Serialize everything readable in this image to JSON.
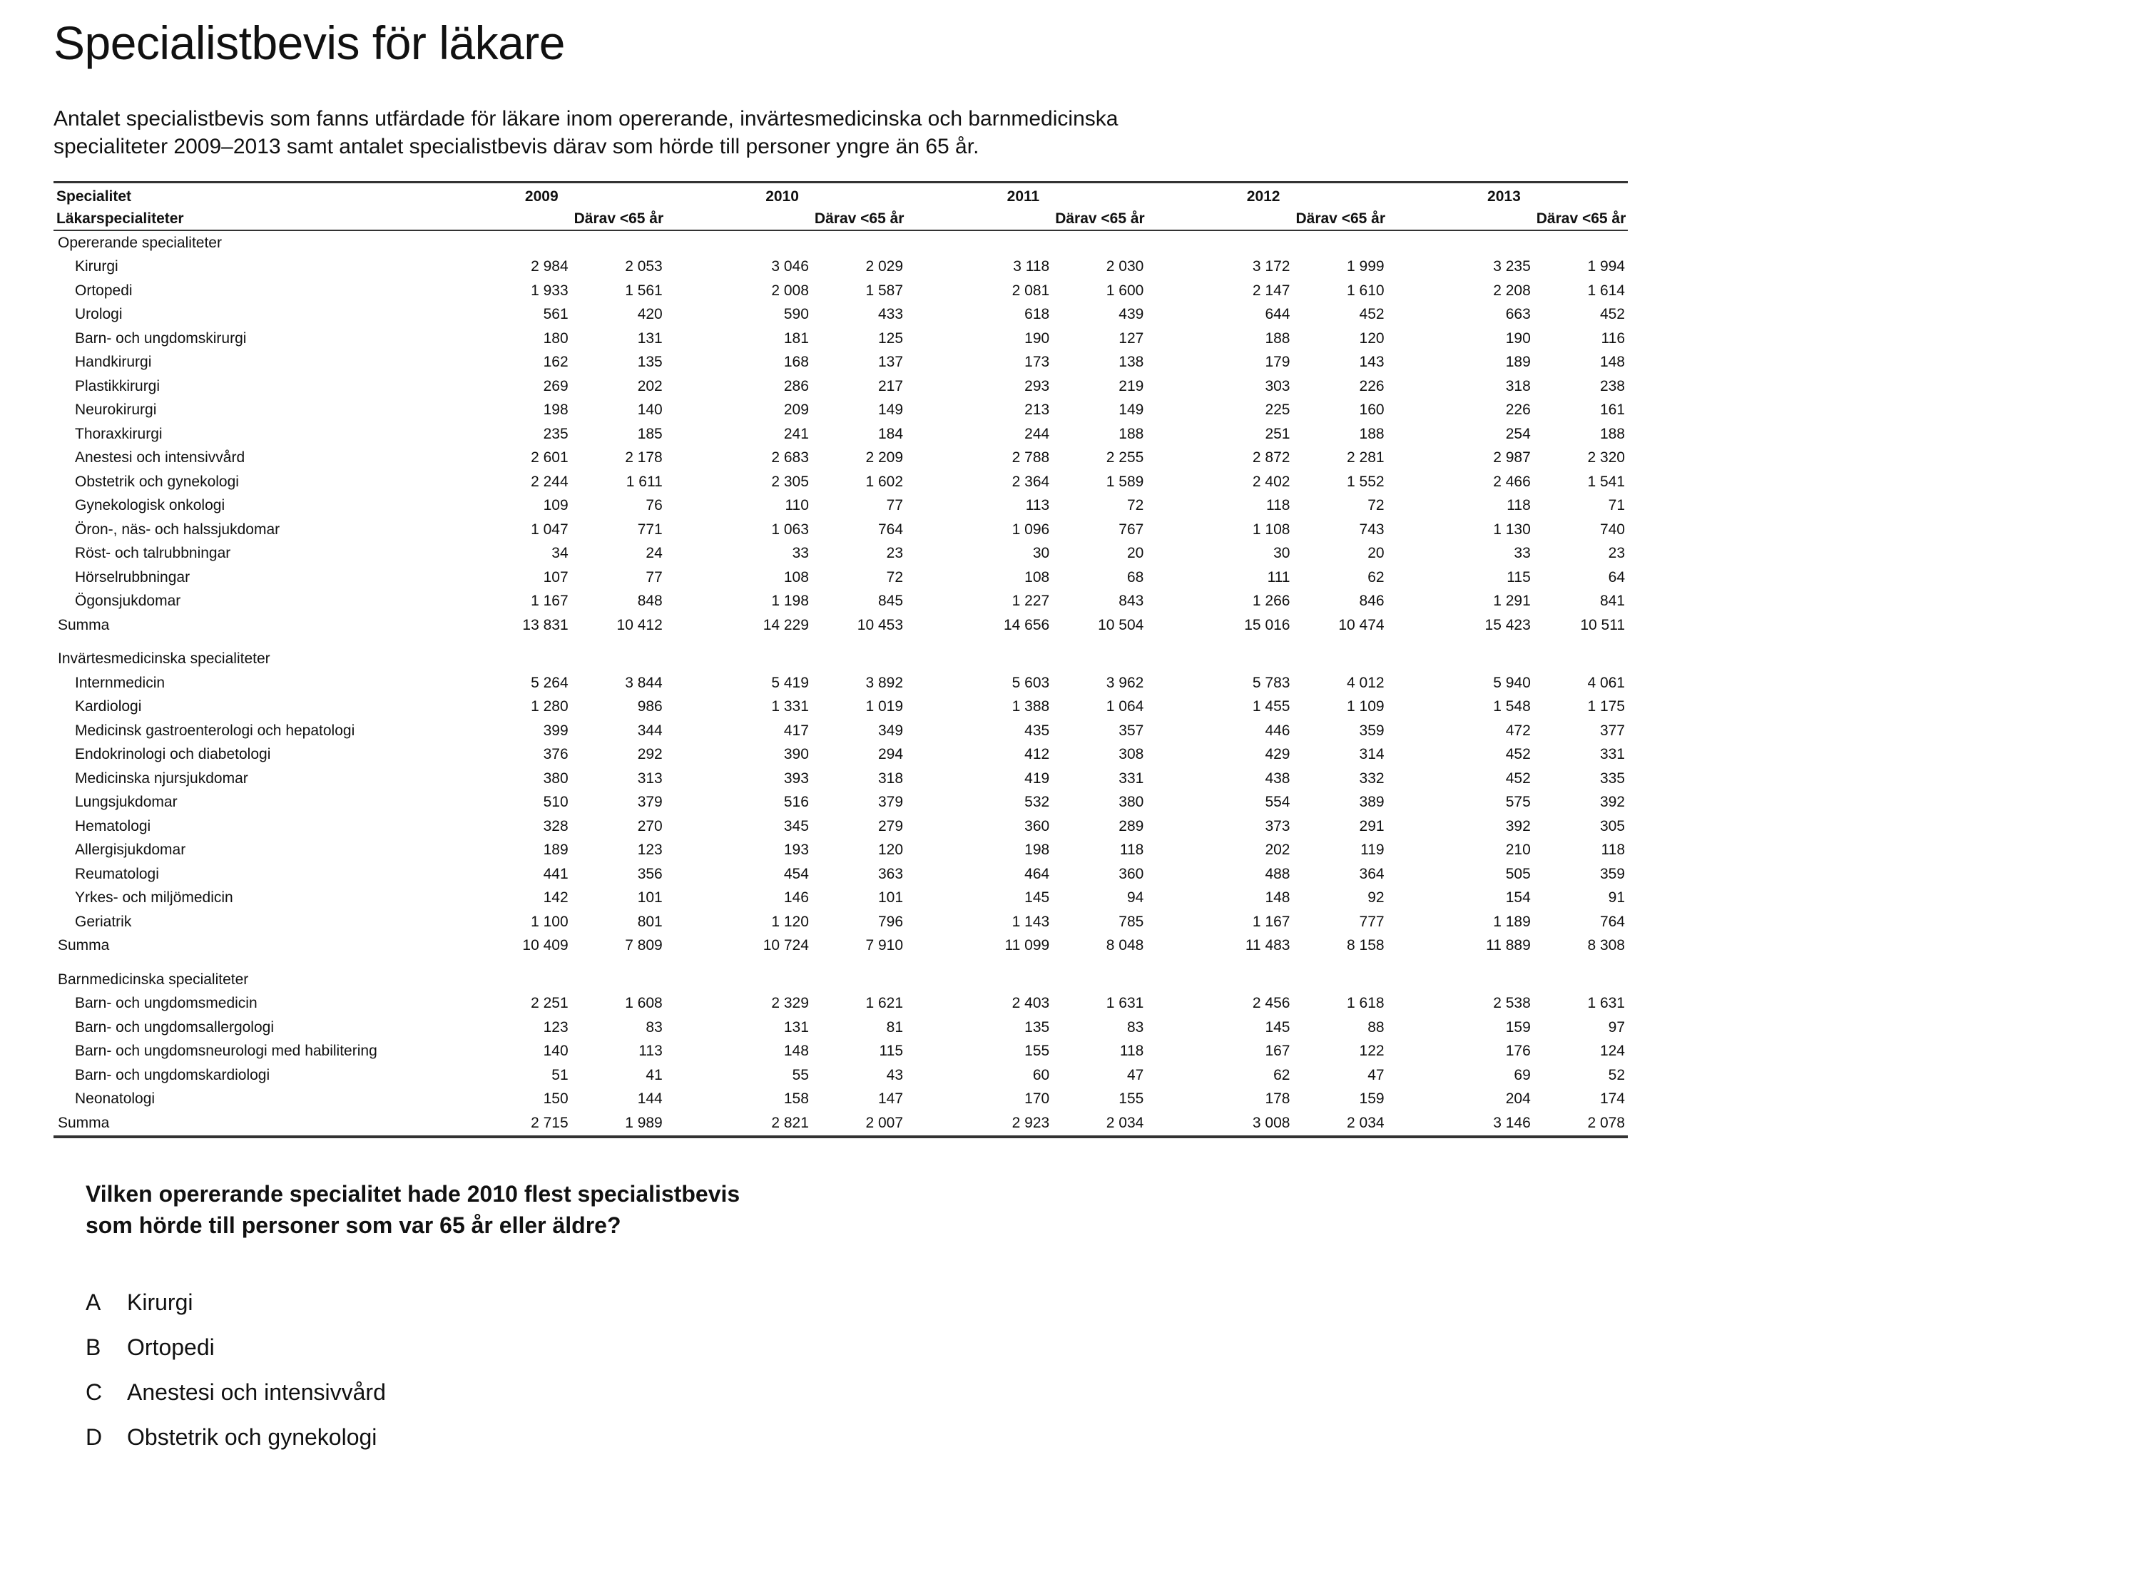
{
  "title": "Specialistbevis för läkare",
  "intro": "Antalet specialistbevis som fanns utfärdade för läkare inom opererande, invärtesmedicinska och barnmedicinska specialiteter 2009–2013 samt antalet specialistbevis därav som hörde till personer yngre än 65 år.",
  "table": {
    "header_col": "Specialitet",
    "header_sub": "Läkarspecialiteter",
    "years": [
      "2009",
      "2010",
      "2011",
      "2012",
      "2013"
    ],
    "sub_label": "Därav <65 år",
    "groups": [
      {
        "name": "Opererande specialiteter",
        "rows": [
          {
            "label": "Kirurgi",
            "values": [
              "2 984",
              "2 053",
              "3 046",
              "2 029",
              "3 118",
              "2 030",
              "3 172",
              "1 999",
              "3 235",
              "1 994"
            ]
          },
          {
            "label": "Ortopedi",
            "values": [
              "1 933",
              "1 561",
              "2 008",
              "1 587",
              "2 081",
              "1 600",
              "2 147",
              "1 610",
              "2 208",
              "1 614"
            ]
          },
          {
            "label": "Urologi",
            "values": [
              "561",
              "420",
              "590",
              "433",
              "618",
              "439",
              "644",
              "452",
              "663",
              "452"
            ]
          },
          {
            "label": "Barn- och ungdomskirurgi",
            "values": [
              "180",
              "131",
              "181",
              "125",
              "190",
              "127",
              "188",
              "120",
              "190",
              "116"
            ]
          },
          {
            "label": "Handkirurgi",
            "values": [
              "162",
              "135",
              "168",
              "137",
              "173",
              "138",
              "179",
              "143",
              "189",
              "148"
            ]
          },
          {
            "label": "Plastikkirurgi",
            "values": [
              "269",
              "202",
              "286",
              "217",
              "293",
              "219",
              "303",
              "226",
              "318",
              "238"
            ]
          },
          {
            "label": "Neurokirurgi",
            "values": [
              "198",
              "140",
              "209",
              "149",
              "213",
              "149",
              "225",
              "160",
              "226",
              "161"
            ]
          },
          {
            "label": "Thoraxkirurgi",
            "values": [
              "235",
              "185",
              "241",
              "184",
              "244",
              "188",
              "251",
              "188",
              "254",
              "188"
            ]
          },
          {
            "label": "Anestesi och intensivvård",
            "values": [
              "2 601",
              "2 178",
              "2 683",
              "2 209",
              "2 788",
              "2 255",
              "2 872",
              "2 281",
              "2 987",
              "2 320"
            ]
          },
          {
            "label": "Obstetrik och gynekologi",
            "values": [
              "2 244",
              "1 611",
              "2 305",
              "1 602",
              "2 364",
              "1 589",
              "2 402",
              "1 552",
              "2 466",
              "1 541"
            ]
          },
          {
            "label": "Gynekologisk onkologi",
            "values": [
              "109",
              "76",
              "110",
              "77",
              "113",
              "72",
              "118",
              "72",
              "118",
              "71"
            ]
          },
          {
            "label": "Öron-, näs- och halssjukdomar",
            "values": [
              "1 047",
              "771",
              "1 063",
              "764",
              "1 096",
              "767",
              "1 108",
              "743",
              "1 130",
              "740"
            ]
          },
          {
            "label": "Röst- och talrubbningar",
            "values": [
              "34",
              "24",
              "33",
              "23",
              "30",
              "20",
              "30",
              "20",
              "33",
              "23"
            ]
          },
          {
            "label": "Hörselrubbningar",
            "values": [
              "107",
              "77",
              "108",
              "72",
              "108",
              "68",
              "111",
              "62",
              "115",
              "64"
            ]
          },
          {
            "label": "Ögonsjukdomar",
            "values": [
              "1 167",
              "848",
              "1 198",
              "845",
              "1 227",
              "843",
              "1 266",
              "846",
              "1 291",
              "841"
            ]
          }
        ],
        "sum": {
          "label": "Summa",
          "values": [
            "13 831",
            "10 412",
            "14 229",
            "10 453",
            "14 656",
            "10 504",
            "15 016",
            "10 474",
            "15 423",
            "10 511"
          ]
        }
      },
      {
        "name": "Invärtesmedicinska specialiteter",
        "rows": [
          {
            "label": "Internmedicin",
            "values": [
              "5 264",
              "3 844",
              "5 419",
              "3 892",
              "5 603",
              "3 962",
              "5 783",
              "4 012",
              "5 940",
              "4 061"
            ]
          },
          {
            "label": "Kardiologi",
            "values": [
              "1 280",
              "986",
              "1 331",
              "1 019",
              "1 388",
              "1 064",
              "1 455",
              "1 109",
              "1 548",
              "1 175"
            ]
          },
          {
            "label": "Medicinsk gastroenterologi och hepatologi",
            "values": [
              "399",
              "344",
              "417",
              "349",
              "435",
              "357",
              "446",
              "359",
              "472",
              "377"
            ]
          },
          {
            "label": "Endokrinologi och diabetologi",
            "values": [
              "376",
              "292",
              "390",
              "294",
              "412",
              "308",
              "429",
              "314",
              "452",
              "331"
            ]
          },
          {
            "label": "Medicinska njursjukdomar",
            "values": [
              "380",
              "313",
              "393",
              "318",
              "419",
              "331",
              "438",
              "332",
              "452",
              "335"
            ]
          },
          {
            "label": "Lungsjukdomar",
            "values": [
              "510",
              "379",
              "516",
              "379",
              "532",
              "380",
              "554",
              "389",
              "575",
              "392"
            ]
          },
          {
            "label": "Hematologi",
            "values": [
              "328",
              "270",
              "345",
              "279",
              "360",
              "289",
              "373",
              "291",
              "392",
              "305"
            ]
          },
          {
            "label": "Allergisjukdomar",
            "values": [
              "189",
              "123",
              "193",
              "120",
              "198",
              "118",
              "202",
              "119",
              "210",
              "118"
            ]
          },
          {
            "label": "Reumatologi",
            "values": [
              "441",
              "356",
              "454",
              "363",
              "464",
              "360",
              "488",
              "364",
              "505",
              "359"
            ]
          },
          {
            "label": "Yrkes- och miljömedicin",
            "values": [
              "142",
              "101",
              "146",
              "101",
              "145",
              "94",
              "148",
              "92",
              "154",
              "91"
            ]
          },
          {
            "label": "Geriatrik",
            "values": [
              "1 100",
              "801",
              "1 120",
              "796",
              "1 143",
              "785",
              "1 167",
              "777",
              "1 189",
              "764"
            ]
          }
        ],
        "sum": {
          "label": "Summa",
          "values": [
            "10 409",
            "7 809",
            "10 724",
            "7 910",
            "11 099",
            "8 048",
            "11 483",
            "8 158",
            "11 889",
            "8 308"
          ]
        }
      },
      {
        "name": "Barnmedicinska specialiteter",
        "rows": [
          {
            "label": "Barn- och ungdomsmedicin",
            "values": [
              "2 251",
              "1 608",
              "2 329",
              "1 621",
              "2 403",
              "1 631",
              "2 456",
              "1 618",
              "2 538",
              "1 631"
            ]
          },
          {
            "label": "Barn- och ungdomsallergologi",
            "values": [
              "123",
              "83",
              "131",
              "81",
              "135",
              "83",
              "145",
              "88",
              "159",
              "97"
            ]
          },
          {
            "label": "Barn- och ungdomsneurologi med habilitering",
            "values": [
              "140",
              "113",
              "148",
              "115",
              "155",
              "118",
              "167",
              "122",
              "176",
              "124"
            ]
          },
          {
            "label": "Barn- och ungdomskardiologi",
            "values": [
              "51",
              "41",
              "55",
              "43",
              "60",
              "47",
              "62",
              "47",
              "69",
              "52"
            ]
          },
          {
            "label": "Neonatologi",
            "values": [
              "150",
              "144",
              "158",
              "147",
              "170",
              "155",
              "178",
              "159",
              "204",
              "174"
            ]
          }
        ],
        "sum": {
          "label": "Summa",
          "values": [
            "2 715",
            "1 989",
            "2 821",
            "2 007",
            "2 923",
            "2 034",
            "3 008",
            "2 034",
            "3 146",
            "2 078"
          ]
        }
      }
    ]
  },
  "question": {
    "line1": "Vilken opererande specialitet hade 2010 flest specialistbevis",
    "line2": "som hörde till personer som var 65 år eller äldre?"
  },
  "options": [
    {
      "letter": "A",
      "text": "Kirurgi"
    },
    {
      "letter": "B",
      "text": "Ortopedi"
    },
    {
      "letter": "C",
      "text": "Anestesi och intensivvård"
    },
    {
      "letter": "D",
      "text": "Obstetrik och gynekologi"
    }
  ]
}
